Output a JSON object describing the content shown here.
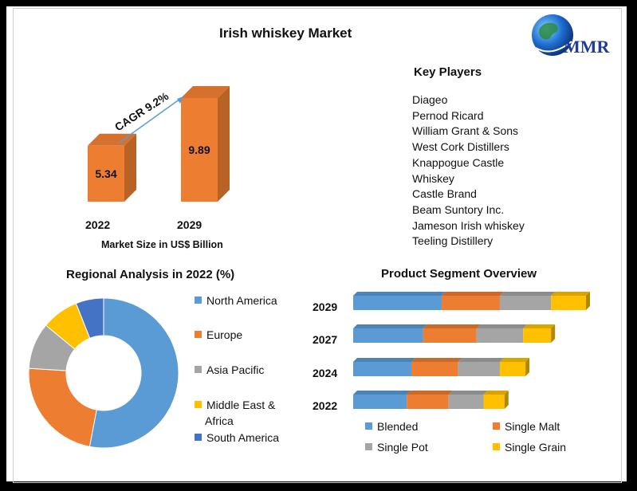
{
  "page_title": "Irish whiskey Market",
  "logo_text": "MMR",
  "key_players": {
    "heading": "Key Players",
    "items": [
      "Diageo",
      "Pernod Ricard",
      "William Grant & Sons",
      "West Cork Distillers",
      "Knappogue Castle",
      "Whiskey",
      "Castle Brand",
      "Beam Suntory Inc.",
      "Jameson Irish whiskey",
      "Teeling Distillery"
    ]
  },
  "colors": {
    "orange": "#ED7D31",
    "blue": "#5B9BD5",
    "gray": "#A5A5A5",
    "yellow": "#FFC000",
    "dark_blue": "#4472C4"
  },
  "chart_data": [
    {
      "type": "bar",
      "categories": [
        "2022",
        "2029"
      ],
      "values": [
        5.34,
        9.89
      ],
      "value_labels": [
        "5.34",
        "9.89"
      ],
      "xlabel": "Market Size in US$ Billion",
      "annotation": "CAGR 9.2%"
    },
    {
      "type": "pie",
      "title": "Regional Analysis in 2022 (%)",
      "labels": [
        "North America",
        "Europe",
        "Asia Pacific",
        "Middle East & Africa",
        "South America"
      ],
      "values": [
        53,
        23,
        10,
        8,
        6
      ],
      "legend_position": "right"
    },
    {
      "type": "bar",
      "title": "Product Segment Overview",
      "orientation": "horizontal",
      "stacked": true,
      "categories": [
        "2029",
        "2027",
        "2024",
        "2022"
      ],
      "series": [
        {
          "name": "Blended",
          "values": [
            38,
            30,
            25,
            23
          ]
        },
        {
          "name": "Single Malt",
          "values": [
            25,
            23,
            20,
            18
          ]
        },
        {
          "name": "Single Pot",
          "values": [
            22,
            20,
            18,
            15
          ]
        },
        {
          "name": "Single Grain",
          "values": [
            15,
            12,
            11,
            9
          ]
        }
      ],
      "legend_position": "bottom"
    }
  ]
}
